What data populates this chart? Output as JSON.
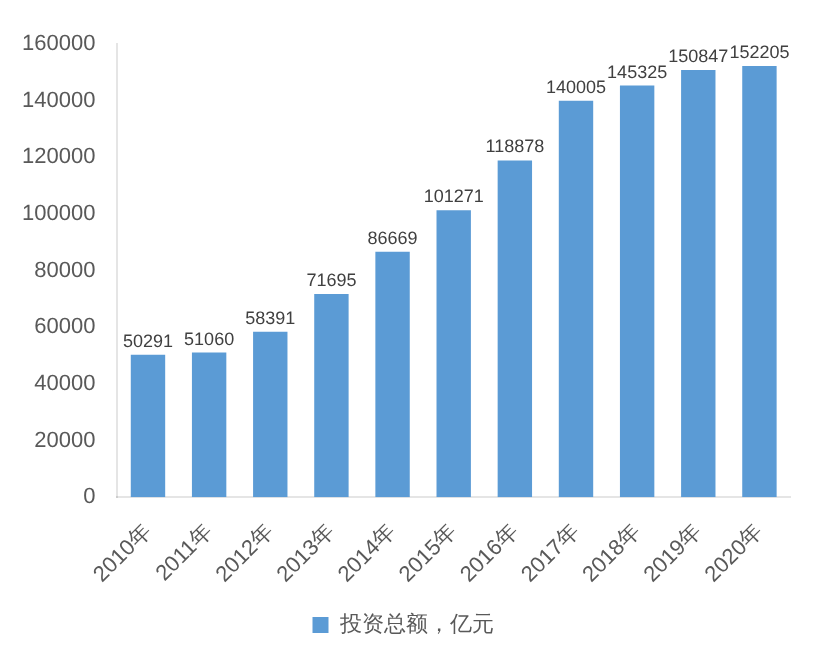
{
  "chart_data": {
    "type": "bar",
    "categories": [
      "2010年",
      "2011年",
      "2012年",
      "2013年",
      "2014年",
      "2015年",
      "2016年",
      "2017年",
      "2018年",
      "2019年",
      "2020年"
    ],
    "series": [
      {
        "name": "投资总额，亿元",
        "color": "#5b9bd5",
        "values": [
          50291,
          51060,
          58391,
          71695,
          86669,
          101271,
          118878,
          140005,
          145325,
          150847,
          152205
        ]
      }
    ],
    "ylim": [
      0,
      160000
    ],
    "yticks": [
      0,
      20000,
      40000,
      60000,
      80000,
      100000,
      120000,
      140000,
      160000
    ],
    "grid": false,
    "legend": "bottom",
    "data_labels": true
  }
}
